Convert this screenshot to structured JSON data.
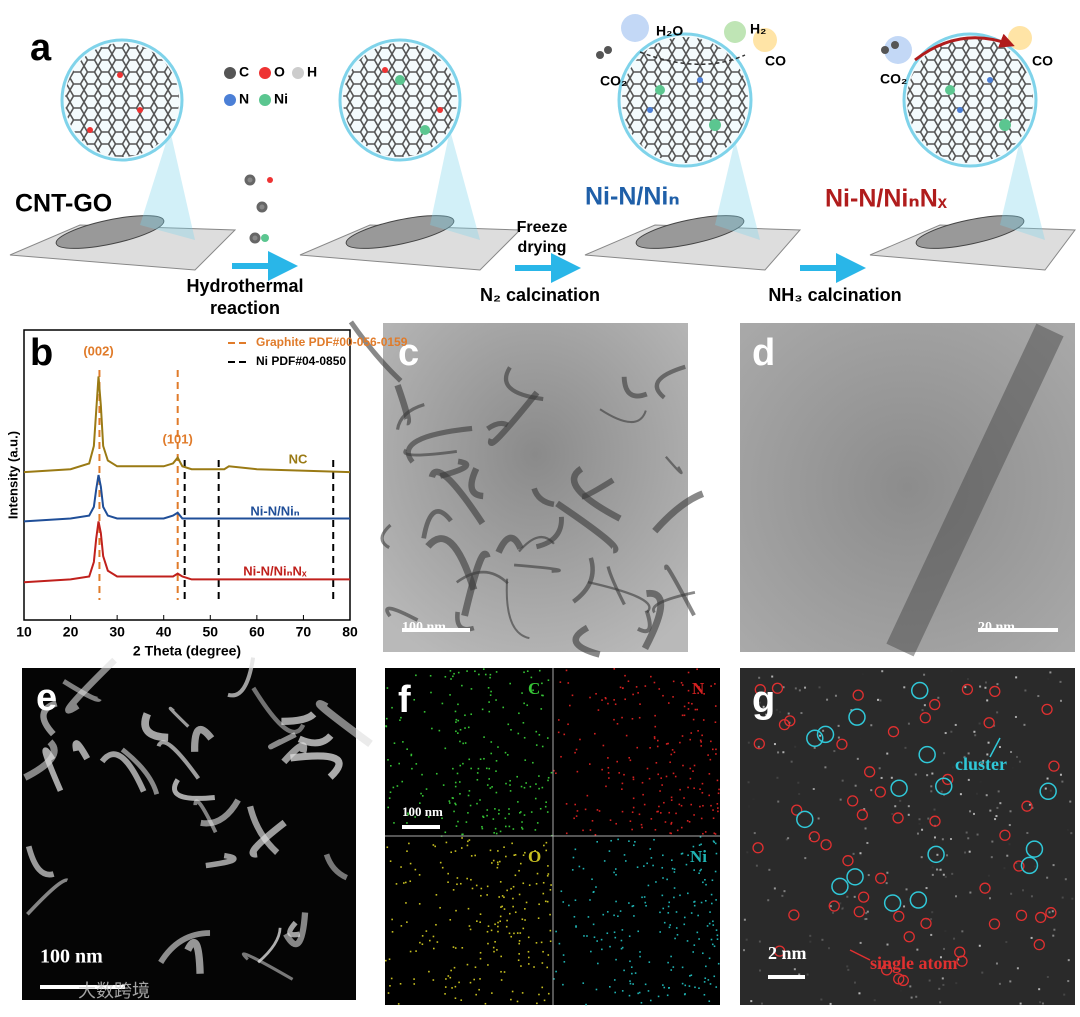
{
  "panel_letters": [
    "a",
    "b",
    "c",
    "d",
    "e",
    "f",
    "g"
  ],
  "panel_a": {
    "legend": [
      "C",
      "O",
      "H",
      "N",
      "Ni"
    ],
    "material": "CNT-GO",
    "step1": [
      "Hydrothermal",
      "reaction"
    ],
    "step2_top": [
      "Freeze",
      "drying"
    ],
    "step2_bottom": "N₂ calcination",
    "step3": "NH₃ calcination",
    "product1": "Ni-N/Niₙ",
    "product2": "Ni-N/NiₙNₓ",
    "molecules1": [
      "H₂O",
      "H₂",
      "CO",
      "CO₂"
    ],
    "molecules2": [
      "CO₂",
      "CO"
    ]
  },
  "chart_data": {
    "type": "line",
    "xlabel": "2 Theta (degree)",
    "ylabel": "Intensity (a.u.)",
    "x": [
      10,
      20,
      24,
      25,
      25.5,
      26,
      26.5,
      27,
      28,
      30,
      40,
      42,
      43,
      44,
      46,
      53,
      54,
      60,
      80
    ],
    "series": [
      {
        "name": "NC",
        "color": "#9a7a14",
        "values": [
          51,
          52,
          54,
          60,
          72,
          84,
          74,
          60,
          55,
          53,
          53,
          54,
          56,
          53,
          52,
          52,
          53,
          52,
          51
        ]
      },
      {
        "name": "Ni-N/Niₙ",
        "color": "#1f4e98",
        "values": [
          34,
          35,
          36,
          39,
          45,
          50,
          46,
          39,
          36,
          35,
          35,
          36,
          37,
          35,
          35,
          35,
          35,
          35,
          35
        ]
      },
      {
        "name": "Ni-N/NiₙNₓ",
        "color": "#c0201c",
        "values": [
          13,
          14,
          15,
          20,
          28,
          34,
          30,
          22,
          17,
          15,
          15,
          15,
          16,
          15,
          14,
          14,
          14,
          14,
          14
        ]
      }
    ],
    "reference_lines": [
      {
        "name": "Graphite PDF#00-056-0159",
        "color": "#e07b2a",
        "x": [
          26.2,
          43
        ]
      },
      {
        "name": "Ni PDF#04-0850",
        "color": "#000000",
        "x": [
          44.5,
          51.8,
          76.4
        ]
      }
    ],
    "annotations": [
      {
        "text": "(002)",
        "x": 26
      },
      {
        "text": "(101)",
        "x": 43
      }
    ],
    "xlim": [
      10,
      80
    ],
    "xticks": [
      10,
      20,
      30,
      40,
      50,
      60,
      70,
      80
    ],
    "ylim": [
      0,
      100
    ]
  },
  "scale_bars": {
    "c": "100 nm",
    "d": "20 nm",
    "e": "100 nm",
    "f": "100 nm",
    "g": "2 nm"
  },
  "panel_f": [
    "C",
    "N",
    "O",
    "Ni"
  ],
  "panel_g": {
    "cluster": "cluster",
    "single_atom": "single atom"
  },
  "watermark": "大数跨境"
}
